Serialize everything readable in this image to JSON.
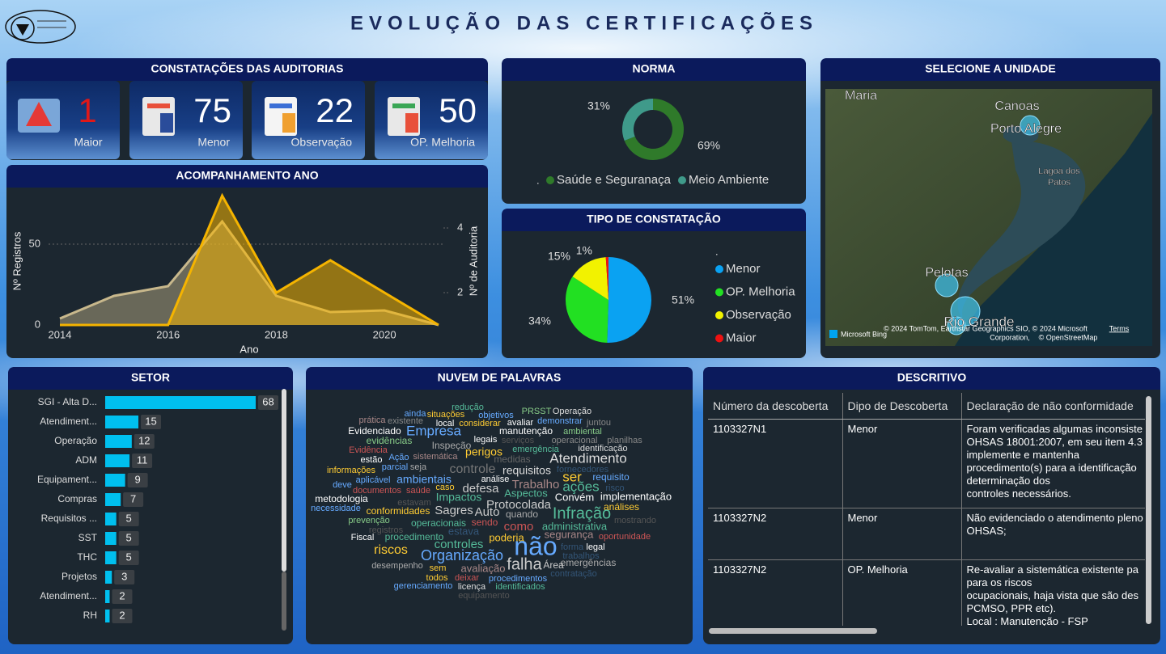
{
  "header": {
    "title": "EVOLUÇÃO DAS CERTIFICAÇÕES"
  },
  "kpis": {
    "title": "CONSTATAÇÕES DAS AUDITORIAS",
    "cards": [
      {
        "value": 1,
        "label": "Maior"
      },
      {
        "value": 75,
        "label": "Menor"
      },
      {
        "value": 22,
        "label": "Observação"
      },
      {
        "value": 50,
        "label": "OP. Melhoria"
      }
    ]
  },
  "chart_data": [
    {
      "type": "area",
      "title": "ACOMPANHAMENTO ANO",
      "x_label": "Ano",
      "y_label": "Nº Registros",
      "y2_label": "Nº de Auditoria",
      "x": [
        2014,
        2015,
        2016,
        2017,
        2018,
        2019,
        2020,
        2021
      ],
      "xlim": [
        2014,
        2021
      ],
      "xticks": [
        2014,
        2016,
        2018,
        2020
      ],
      "ylim": [
        0,
        80
      ],
      "yticks": [
        0,
        50
      ],
      "y2lim": [
        1,
        5
      ],
      "y2ticks": [
        2,
        4
      ],
      "grid": true,
      "series": [
        {
          "color": "#c8b88c",
          "values": [
            4,
            18,
            24,
            64,
            18,
            8,
            9,
            0
          ]
        },
        {
          "color": "#f5b400",
          "axis": "y2",
          "values": [
            1,
            1,
            1,
            5,
            2,
            3,
            2,
            1
          ]
        }
      ]
    },
    {
      "type": "donut",
      "title": "NORMA",
      "legend_title": ".",
      "categories": [
        "Saúde e Seguranaça",
        "Meio Ambiente"
      ],
      "values": [
        69,
        31
      ],
      "value_labels": [
        "69%",
        "31%"
      ],
      "colors": [
        "#2f7a2a",
        "#3f9a8a"
      ]
    },
    {
      "type": "pie",
      "title": "TIPO DE CONSTATAÇÃO",
      "legend_title": ".",
      "categories": [
        "Menor",
        "OP. Melhoria",
        "Observação",
        "Maior"
      ],
      "values": [
        51,
        34,
        15,
        1
      ],
      "value_labels": [
        "51%",
        "34%",
        "15%",
        "1%"
      ],
      "colors": [
        "#0aa2f2",
        "#22e022",
        "#f2f200",
        "#ee1111"
      ]
    },
    {
      "type": "bar",
      "title": "SETOR",
      "orientation": "horizontal",
      "categories": [
        "SGI - Alta D...",
        "Atendiment...",
        "Operação",
        "ADM",
        "Equipament...",
        "Compras",
        "Requisitos ...",
        "SST",
        "THC",
        "Projetos",
        "Atendiment...",
        "RH"
      ],
      "values": [
        68,
        15,
        12,
        11,
        9,
        7,
        5,
        5,
        5,
        3,
        2,
        2
      ],
      "xlim": [
        0,
        68
      ],
      "color": "#00c0ef"
    }
  ],
  "map": {
    "title": "SELECIONE A UNIDADE",
    "labels": [
      "Maria",
      "Canoas",
      "Porto Alegre",
      "Lagoa dos",
      "Patos",
      "Pelotas",
      "Rio Grande"
    ],
    "attribution": [
      "© 2024 TomTom, Earthstar Geographics SIO, © 2024 Microsoft",
      "Corporation,",
      "© OpenStreetMap"
    ],
    "terms": "Terms",
    "brand": "Microsoft Bing"
  },
  "wordcloud": {
    "title": "NUVEM DE PALAVRAS",
    "words": [
      "redução",
      "ainda",
      "situações",
      "objetivos",
      "PRSST",
      "Operação",
      "prática",
      "existente",
      "local",
      "considerar",
      "avaliar",
      "demonstrar",
      "juntou",
      "Evidenciado",
      "Empresa",
      "manutenção",
      "ambiental",
      "evidências",
      "legais",
      "serviços",
      "operacional",
      "planilhas",
      "Evidência",
      "Inspeção",
      "perigos",
      "emergência",
      "identificação",
      "estão",
      "Ação",
      "sistemática",
      "medidas",
      "Atendimento",
      "informações",
      "parcial",
      "seja",
      "controle",
      "requisitos",
      "fornecedores",
      "aplicável",
      "ambientais",
      "análise",
      "ser",
      "requisito",
      "deve",
      "caso",
      "defesa",
      "Trabalho",
      "ações",
      "risco",
      "documentos",
      "saúde",
      "Impactos",
      "Aspectos",
      "metodologia",
      "estavam",
      "Convém",
      "implementação",
      "necessidade",
      "Protocolada",
      "análises",
      "conformidades",
      "Sagres",
      "Auto",
      "quando",
      "Infração",
      "prevenção",
      "mostrando",
      "operacionais",
      "sendo",
      "como",
      "administrativa",
      "registros",
      "estava",
      "Fiscal",
      "procedimento",
      "poderia",
      "segurança",
      "oportunidade",
      "controles",
      "não",
      "forma",
      "legal",
      "riscos",
      "Organização",
      "trabalhos",
      "desempenho",
      "falha",
      "emergências",
      "Área",
      "sem",
      "avaliação",
      "contratação",
      "todos",
      "deixar",
      "procedimentos",
      "gerenciamento",
      "licença",
      "identificados",
      "equipamento"
    ]
  },
  "table": {
    "title": "DESCRITIVO",
    "columns": [
      "Número da descoberta",
      "Dipo de Descoberta",
      "Declaração de não conformidade"
    ],
    "rows": [
      [
        "1103327N1",
        "Menor",
        "Foram verificadas algumas inconsiste\nOHSAS 18001:2007, em seu item 4.3\nimplemente e mantenha\nprocedimento(s) para a identificação\ndeterminação dos\ncontroles necessários."
      ],
      [
        "1103327N2",
        "Menor",
        "Não evidenciado o atendimento pleno\nOHSAS;"
      ],
      [
        "1103327N2",
        "OP. Melhoria",
        "Re-avaliar a sistemática existente pa\npara os riscos\nocupacionais, haja vista que são des\nPCMSO, PPR etc).\nLocal : Manutenção - FSP"
      ]
    ]
  }
}
